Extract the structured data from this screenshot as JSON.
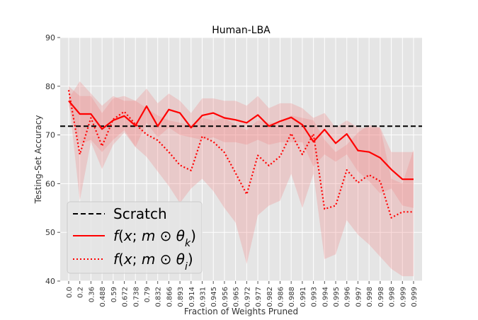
{
  "chart_data": {
    "type": "line",
    "title": "Human-LBA",
    "xlabel": "Fraction of Weights Pruned",
    "ylabel": "Testing-Set Accuracy",
    "ylim": [
      40,
      90
    ],
    "yticks": [
      40,
      50,
      60,
      70,
      80,
      90
    ],
    "grid": true,
    "legend_position": "bottom-left",
    "categories": [
      "0.0",
      "0.2",
      "0.36",
      "0.488",
      "0.59",
      "0.672",
      "0.738",
      "0.79",
      "0.832",
      "0.866",
      "0.893",
      "0.914",
      "0.931",
      "0.945",
      "0.956",
      "0.965",
      "0.972",
      "0.977",
      "0.982",
      "0.986",
      "0.988",
      "0.991",
      "0.993",
      "0.994",
      "0.995",
      "0.996",
      "0.997",
      "0.998",
      "0.998",
      "0.998",
      "0.999",
      "0.999"
    ],
    "xtick_labels": [
      "0.0",
      "0.2",
      "0.36",
      "0.488",
      "0.59",
      "0.672",
      "0.738",
      "0.79",
      "0.832",
      "0.866",
      "0.893",
      "0.914",
      "0.931",
      "0.945",
      "0.956",
      "0.965",
      "0.972",
      "0.977",
      "0.982",
      "0.986",
      "0.988",
      "0.991",
      "0.993",
      "0.994",
      "0.995",
      "0.996",
      "0.997",
      "0.998",
      "0.998",
      "0.998",
      "0.999",
      "0.999"
    ],
    "series": [
      {
        "name": "Scratch",
        "style": "dashed",
        "color": "#000000",
        "values": [
          71.8,
          71.8,
          71.8,
          71.8,
          71.8,
          71.8,
          71.8,
          71.8,
          71.8,
          71.8,
          71.8,
          71.8,
          71.8,
          71.8,
          71.8,
          71.8,
          71.8,
          71.8,
          71.8,
          71.8,
          71.8,
          71.8,
          71.8,
          71.8,
          71.8,
          71.8,
          71.8,
          71.8,
          71.8,
          71.8,
          71.8,
          71.8
        ]
      },
      {
        "name": "f(x; m ⊙ θ_k)",
        "style": "solid",
        "color": "#ff0000",
        "values": [
          77.0,
          74.3,
          74.3,
          71.2,
          73.0,
          73.9,
          71.9,
          75.9,
          71.8,
          75.2,
          74.5,
          71.5,
          74.0,
          74.5,
          73.5,
          73.1,
          72.5,
          74.1,
          71.8,
          72.8,
          73.6,
          72.1,
          68.6,
          71.1,
          68.3,
          70.2,
          66.8,
          66.5,
          65.3,
          62.9,
          60.9,
          60.9
        ],
        "band_upper": [
          77.5,
          81.0,
          78.5,
          76.0,
          78.0,
          77.0,
          77.0,
          79.5,
          76.5,
          78.5,
          77.0,
          74.5,
          77.5,
          77.5,
          77.0,
          77.0,
          76.0,
          78.0,
          75.5,
          76.5,
          76.5,
          75.5,
          73.5,
          74.5,
          71.5,
          73.0,
          71.5,
          71.5,
          71.5,
          66.5,
          66.5,
          66.5
        ],
        "band_lower": [
          76.0,
          68.0,
          69.0,
          66.5,
          69.0,
          71.0,
          67.5,
          72.5,
          69.5,
          71.5,
          70.0,
          69.5,
          69.0,
          69.5,
          68.5,
          68.5,
          68.0,
          69.0,
          68.0,
          68.5,
          68.5,
          68.5,
          63.5,
          66.0,
          64.5,
          66.0,
          62.5,
          60.5,
          58.0,
          59.0,
          55.5,
          55.0
        ]
      },
      {
        "name": "f(x; m ⊙ θ_i)",
        "style": "dotted",
        "color": "#ff0000",
        "values": [
          79.2,
          66.0,
          73.5,
          67.7,
          73.2,
          74.8,
          72.2,
          70.1,
          68.9,
          66.5,
          63.8,
          62.7,
          69.7,
          68.6,
          66.4,
          62.2,
          57.8,
          65.8,
          63.7,
          65.6,
          70.3,
          66.0,
          70.2,
          54.8,
          55.5,
          62.8,
          60.2,
          61.8,
          60.5,
          53.0,
          54.2,
          54.2
        ],
        "band_upper": [
          80.0,
          78.0,
          78.0,
          74.5,
          77.5,
          78.0,
          77.0,
          75.5,
          74.0,
          73.0,
          72.5,
          72.0,
          73.5,
          73.0,
          73.5,
          72.0,
          71.0,
          73.0,
          72.5,
          72.5,
          74.0,
          73.5,
          73.0,
          69.0,
          66.5,
          68.0,
          70.5,
          72.0,
          71.5,
          61.0,
          60.0,
          67.0
        ],
        "band_lower": [
          77.5,
          56.5,
          68.5,
          63.0,
          68.0,
          70.5,
          67.5,
          65.5,
          62.5,
          59.5,
          56.0,
          59.0,
          61.0,
          58.5,
          55.0,
          52.0,
          43.5,
          53.5,
          55.5,
          56.5,
          62.0,
          55.0,
          62.0,
          44.5,
          45.5,
          52.5,
          49.5,
          47.5,
          45.0,
          42.5,
          41.0,
          41.0
        ]
      }
    ]
  },
  "legend": {
    "items": [
      {
        "label": "Scratch",
        "style": "dashed"
      },
      {
        "label": "f(x; m ⊙ θk)",
        "style": "solid"
      },
      {
        "label": "f(x; m ⊙ θi)",
        "style": "dotted"
      }
    ]
  },
  "colors": {
    "plot_background": "#e5e5e5",
    "grid": "#ffffff",
    "band": "#f08080",
    "line": "#ff0000",
    "scratch": "#000000"
  }
}
